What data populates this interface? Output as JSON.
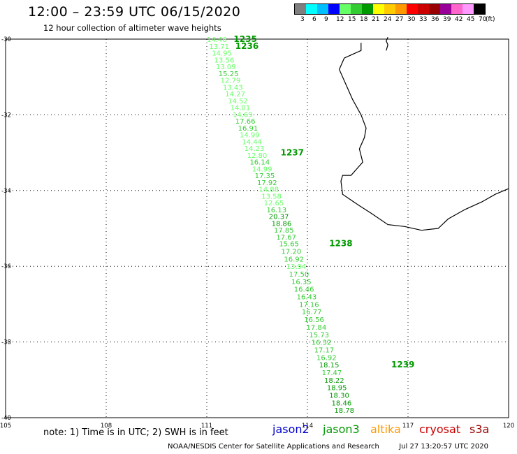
{
  "header": {
    "title": "12:00 – 23:59 UTC 06/15/2020",
    "subtitle": "12 hour collection of altimeter wave heights"
  },
  "color_scale": {
    "colors": [
      "#7f7f7f",
      "#00ffff",
      "#00bfff",
      "#0000ff",
      "#66ff66",
      "#33cc33",
      "#009900",
      "#ffff00",
      "#ffcc00",
      "#ff9900",
      "#ff0000",
      "#cc0000",
      "#990000",
      "#990099",
      "#ff66cc",
      "#ff99ff",
      "#000000"
    ],
    "labels": [
      "3",
      "6",
      "9",
      "12",
      "15",
      "18",
      "21",
      "24",
      "27",
      "30",
      "33",
      "36",
      "39",
      "42",
      "45",
      "70",
      "(ft)"
    ]
  },
  "map": {
    "lon_range": [
      105,
      120
    ],
    "lat_range": [
      -40,
      -30
    ],
    "lon_ticks": [
      "105",
      "108",
      "111",
      "114",
      "117",
      "120"
    ],
    "lat_ticks": [
      "-30",
      "-32",
      "-34",
      "-36",
      "-38",
      "-40"
    ],
    "grid": "dotted",
    "coast": [
      [
        115.6,
        -30.1
      ],
      [
        115.6,
        -30.3
      ],
      [
        115.1,
        -30.5
      ],
      [
        114.95,
        -30.8
      ],
      [
        115.05,
        -31.0
      ],
      [
        115.2,
        -31.3
      ],
      [
        115.35,
        -31.6
      ],
      [
        115.6,
        -32.0
      ],
      [
        115.75,
        -32.35
      ],
      [
        115.7,
        -32.6
      ],
      [
        115.55,
        -32.9
      ],
      [
        115.65,
        -33.25
      ],
      [
        115.45,
        -33.45
      ],
      [
        115.3,
        -33.6
      ],
      [
        115.05,
        -33.6
      ],
      [
        115.0,
        -33.75
      ],
      [
        115.05,
        -34.1
      ],
      [
        115.3,
        -34.25
      ],
      [
        115.55,
        -34.4
      ],
      [
        115.9,
        -34.6
      ],
      [
        116.4,
        -34.9
      ],
      [
        116.9,
        -34.95
      ],
      [
        117.4,
        -35.05
      ],
      [
        117.9,
        -35.0
      ],
      [
        118.2,
        -34.75
      ],
      [
        118.7,
        -34.5
      ],
      [
        119.2,
        -34.3
      ],
      [
        119.6,
        -34.1
      ],
      [
        120.0,
        -33.95
      ]
    ],
    "rottnest": [
      [
        116.35,
        -30.3
      ],
      [
        116.4,
        -30.15
      ],
      [
        116.35,
        -30.05
      ],
      [
        116.4,
        -29.95
      ]
    ]
  },
  "chart_data": {
    "type": "scatter",
    "x_axis": "longitude",
    "y_axis": "latitude",
    "points": [
      {
        "lat": -30.0,
        "lon": 111.0,
        "swh": "14.46"
      },
      {
        "lat": -30.18,
        "lon": 111.07,
        "swh": "13.71"
      },
      {
        "lat": -30.36,
        "lon": 111.15,
        "swh": "14.95"
      },
      {
        "lat": -30.54,
        "lon": 111.22,
        "swh": "13.56"
      },
      {
        "lat": -30.72,
        "lon": 111.27,
        "swh": "13.09"
      },
      {
        "lat": -30.9,
        "lon": 111.35,
        "swh": "15.25"
      },
      {
        "lat": -31.08,
        "lon": 111.41,
        "swh": "12.79"
      },
      {
        "lat": -31.26,
        "lon": 111.48,
        "swh": "13.43"
      },
      {
        "lat": -31.44,
        "lon": 111.55,
        "swh": "14.27"
      },
      {
        "lat": -31.62,
        "lon": 111.63,
        "swh": "14.52"
      },
      {
        "lat": -31.8,
        "lon": 111.7,
        "swh": "14.01"
      },
      {
        "lat": -31.98,
        "lon": 111.77,
        "swh": "14.69"
      },
      {
        "lat": -32.16,
        "lon": 111.85,
        "swh": "17.66"
      },
      {
        "lat": -32.34,
        "lon": 111.93,
        "swh": "16.91"
      },
      {
        "lat": -32.52,
        "lon": 111.98,
        "swh": "14.99"
      },
      {
        "lat": -32.7,
        "lon": 112.05,
        "swh": "14.44"
      },
      {
        "lat": -32.88,
        "lon": 112.12,
        "swh": "14.23"
      },
      {
        "lat": -33.06,
        "lon": 112.2,
        "swh": "12.80"
      },
      {
        "lat": -33.24,
        "lon": 112.28,
        "swh": "16.14"
      },
      {
        "lat": -33.42,
        "lon": 112.35,
        "swh": "14.99"
      },
      {
        "lat": -33.6,
        "lon": 112.43,
        "swh": "17.35"
      },
      {
        "lat": -33.78,
        "lon": 112.5,
        "swh": "17.92"
      },
      {
        "lat": -33.96,
        "lon": 112.55,
        "swh": "14.88"
      },
      {
        "lat": -34.14,
        "lon": 112.63,
        "swh": "13.58"
      },
      {
        "lat": -34.32,
        "lon": 112.7,
        "swh": "12.65"
      },
      {
        "lat": -34.5,
        "lon": 112.78,
        "swh": "16.13"
      },
      {
        "lat": -34.68,
        "lon": 112.85,
        "swh": "20.37"
      },
      {
        "lat": -34.86,
        "lon": 112.93,
        "swh": "18.86"
      },
      {
        "lat": -35.04,
        "lon": 113.0,
        "swh": "17.85"
      },
      {
        "lat": -35.22,
        "lon": 113.07,
        "swh": "17.67"
      },
      {
        "lat": -35.4,
        "lon": 113.15,
        "swh": "15.65"
      },
      {
        "lat": -35.6,
        "lon": 113.22,
        "swh": "17.20"
      },
      {
        "lat": -35.8,
        "lon": 113.3,
        "swh": "16.92"
      },
      {
        "lat": -36.0,
        "lon": 113.37,
        "swh": "13.94"
      },
      {
        "lat": -36.2,
        "lon": 113.45,
        "swh": "17.50"
      },
      {
        "lat": -36.4,
        "lon": 113.52,
        "swh": "16.35"
      },
      {
        "lat": -36.6,
        "lon": 113.6,
        "swh": "16.46"
      },
      {
        "lat": -36.8,
        "lon": 113.68,
        "swh": "16.43"
      },
      {
        "lat": -37.0,
        "lon": 113.75,
        "swh": "17.16"
      },
      {
        "lat": -37.2,
        "lon": 113.83,
        "swh": "16.77"
      },
      {
        "lat": -37.4,
        "lon": 113.9,
        "swh": "16.56"
      },
      {
        "lat": -37.6,
        "lon": 113.97,
        "swh": "17.84"
      },
      {
        "lat": -37.8,
        "lon": 114.05,
        "swh": "15.73"
      },
      {
        "lat": -38.0,
        "lon": 114.12,
        "swh": "16.32"
      },
      {
        "lat": -38.2,
        "lon": 114.2,
        "swh": "17.17"
      },
      {
        "lat": -38.4,
        "lon": 114.27,
        "swh": "16.92"
      },
      {
        "lat": -38.6,
        "lon": 114.35,
        "swh": "18.15"
      },
      {
        "lat": -38.8,
        "lon": 114.43,
        "swh": "17.47"
      },
      {
        "lat": -39.0,
        "lon": 114.5,
        "swh": "18.22"
      },
      {
        "lat": -39.2,
        "lon": 114.58,
        "swh": "18.95"
      },
      {
        "lat": -39.4,
        "lon": 114.65,
        "swh": "18.30"
      },
      {
        "lat": -39.6,
        "lon": 114.72,
        "swh": "18.46"
      },
      {
        "lat": -39.8,
        "lon": 114.8,
        "swh": "18.78"
      }
    ],
    "pass_labels": [
      {
        "text": "1235",
        "lat": -30.0,
        "lon": 111.8
      },
      {
        "text": "1236",
        "lat": -30.18,
        "lon": 111.85
      },
      {
        "text": "1237",
        "lat": -33.0,
        "lon": 113.2
      },
      {
        "text": "1238",
        "lat": -35.4,
        "lon": 114.65
      },
      {
        "text": "1239",
        "lat": -38.6,
        "lon": 116.5
      }
    ]
  },
  "footer": {
    "note": "note:  1) Time is in UTC;  2) SWH is in feet",
    "satellites": [
      {
        "name": "jason2",
        "color": "#0000cc"
      },
      {
        "name": "jason3",
        "color": "#009900"
      },
      {
        "name": "altika",
        "color": "#ff9900"
      },
      {
        "name": "cryosat",
        "color": "#cc0000"
      },
      {
        "name": "s3a",
        "color": "#990000"
      }
    ],
    "credit": "NOAA/NESDIS Center for Satellite Applications and Research",
    "timestamp": "Jul 27 13:20:57 UTC 2020"
  }
}
